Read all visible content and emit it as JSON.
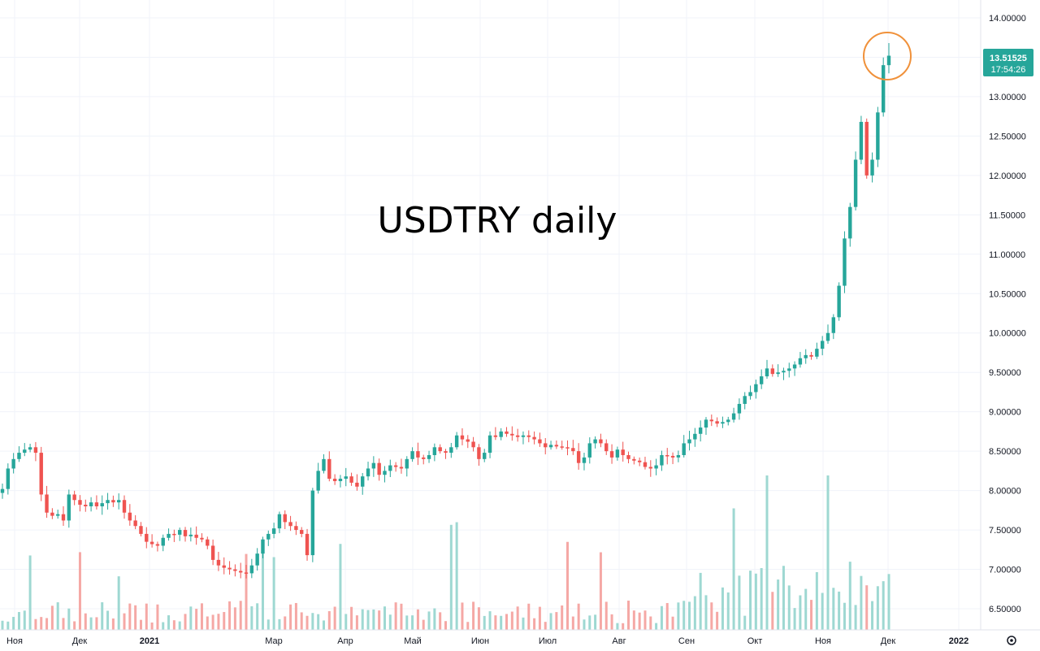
{
  "chart_data": {
    "type": "candlestick",
    "title": "USDTRY daily",
    "y_ticks": [
      "14.00000",
      "13.50000",
      "13.00000",
      "12.50000",
      "12.00000",
      "11.50000",
      "11.00000",
      "10.50000",
      "10.00000",
      "9.50000",
      "9.00000",
      "8.50000",
      "8.00000",
      "7.50000",
      "7.00000",
      "6.50000"
    ],
    "ylim": [
      6.2,
      14.1
    ],
    "x_ticks": [
      "Ноя",
      "Дек",
      "2021",
      "Мар",
      "Апр",
      "Май",
      "Июн",
      "Июл",
      "Авг",
      "Сен",
      "Окт",
      "Ноя",
      "Дек",
      "2022"
    ],
    "last_price": "13.51525",
    "countdown": "17:54:26",
    "colors": {
      "up": "#26a69a",
      "down": "#ef5350",
      "vol_up": "#9ed8d2",
      "vol_down": "#f5a8a5",
      "grid": "#f0f3fa",
      "tag": "#26a69a",
      "highlight_circle": "#f0913a"
    },
    "grid": true,
    "annotation": "orange circle around latest high",
    "gear_icon": "settings-gear-icon",
    "closes": [
      8.02,
      8.28,
      8.4,
      8.48,
      8.52,
      8.55,
      8.48,
      7.95,
      7.72,
      7.68,
      7.7,
      7.62,
      7.95,
      7.88,
      7.82,
      7.8,
      7.85,
      7.8,
      7.84,
      7.88,
      7.85,
      7.88,
      7.72,
      7.62,
      7.55,
      7.45,
      7.35,
      7.32,
      7.3,
      7.4,
      7.45,
      7.44,
      7.5,
      7.42,
      7.44,
      7.4,
      7.38,
      7.3,
      7.12,
      7.05,
      7.02,
      7.0,
      6.98,
      6.96,
      6.95,
      7.05,
      7.2,
      7.38,
      7.45,
      7.52,
      7.7,
      7.6,
      7.55,
      7.5,
      7.45,
      7.18,
      8.0,
      8.25,
      8.4,
      8.15,
      8.12,
      8.15,
      8.18,
      8.1,
      8.05,
      8.18,
      8.28,
      8.35,
      8.2,
      8.25,
      8.32,
      8.3,
      8.28,
      8.4,
      8.5,
      8.42,
      8.4,
      8.45,
      8.55,
      8.5,
      8.48,
      8.55,
      8.7,
      8.65,
      8.62,
      8.55,
      8.4,
      8.48,
      8.7,
      8.68,
      8.75,
      8.72,
      8.7,
      8.68,
      8.7,
      8.68,
      8.65,
      8.6,
      8.55,
      8.58,
      8.56,
      8.55,
      8.54,
      8.5,
      8.35,
      8.42,
      8.6,
      8.65,
      8.6,
      8.5,
      8.42,
      8.52,
      8.45,
      8.4,
      8.38,
      8.36,
      8.3,
      8.28,
      8.32,
      8.45,
      8.44,
      8.42,
      8.45,
      8.6,
      8.65,
      8.72,
      8.8,
      8.9,
      8.88,
      8.85,
      8.87,
      8.9,
      8.98,
      9.1,
      9.2,
      9.25,
      9.35,
      9.45,
      9.55,
      9.48,
      9.5,
      9.52,
      9.55,
      9.6,
      9.68,
      9.72,
      9.7,
      9.8,
      9.9,
      10.0,
      10.2,
      10.6,
      11.2,
      11.6,
      12.2,
      12.68,
      12.0,
      12.2,
      12.8,
      13.4,
      13.52
    ],
    "last_high": 13.68,
    "volumes_note": "relative bar heights shown at bottom"
  }
}
